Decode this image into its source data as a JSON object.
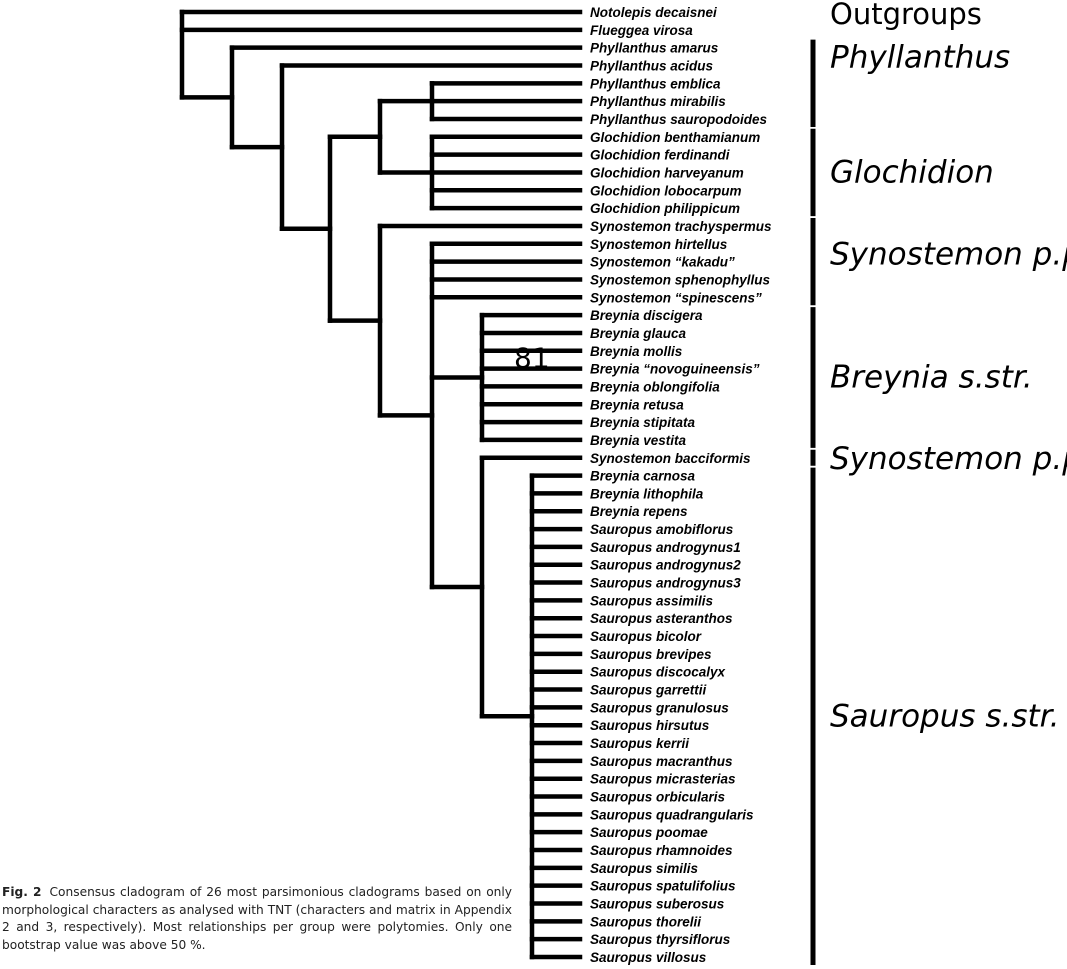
{
  "figure": {
    "caption_label": "Fig. 2",
    "caption_text": "Consensus cladogram of 26 most parsimonious cladograms based on only morphological characters as analysed with TNT (characters and matrix in Appendix 2 and 3, respectively). Most relationships per group were polytomies. Only one bootstrap value was above 50 %."
  },
  "taxa": [
    "Notolepis decaisnei",
    "Flueggea virosa",
    "Phyllanthus amarus",
    "Phyllanthus acidus",
    "Phyllanthus emblica",
    "Phyllanthus mirabilis",
    "Phyllanthus sauropodoides",
    "Glochidion benthamianum",
    "Glochidion ferdinandi",
    "Glochidion harveyanum",
    "Glochidion lobocarpum",
    "Glochidion philippicum",
    "Synostemon trachyspermus",
    "Synostemon hirtellus",
    "Synostemon “kakadu”",
    "Synostemon sphenophyllus",
    "Synostemon “spinescens”",
    "Breynia discigera",
    "Breynia glauca",
    "Breynia mollis",
    "Breynia “novoguineensis”",
    "Breynia oblongifolia",
    "Breynia retusa",
    "Breynia stipitata",
    "Breynia vestita",
    "Synostemon bacciformis",
    "Breynia carnosa",
    "Breynia lithophila",
    "Breynia repens",
    "Sauropus amobiflorus",
    "Sauropus androgynus1",
    "Sauropus androgynus2",
    "Sauropus androgynus3",
    "Sauropus assimilis",
    "Sauropus asteranthos",
    "Sauropus bicolor",
    "Sauropus brevipes",
    "Sauropus discocalyx",
    "Sauropus garrettii",
    "Sauropus granulosus",
    "Sauropus hirsutus",
    "Sauropus kerrii",
    "Sauropus macranthus",
    "Sauropus micrasterias",
    "Sauropus orbicularis",
    "Sauropus quadrangularis",
    "Sauropus poomae",
    "Sauropus rhamnoides",
    "Sauropus similis",
    "Sauropus spatulifolius",
    "Sauropus suberosus",
    "Sauropus thorelii",
    "Sauropus thyrsiflorus",
    "Sauropus villosus"
  ],
  "groups": [
    {
      "label": "Outgroups",
      "first_taxon": 0,
      "last_taxon": 1,
      "bar": false,
      "italic": false
    },
    {
      "label": "Phyllanthus",
      "first_taxon": 2,
      "last_taxon": 6,
      "bar": true,
      "italic": true
    },
    {
      "label": "Glochidion",
      "first_taxon": 7,
      "last_taxon": 11,
      "bar": true,
      "italic": true
    },
    {
      "label": "Synostemon p.p.",
      "first_taxon": 12,
      "last_taxon": 16,
      "bar": true,
      "italic": true
    },
    {
      "label": "Breynia s.str.",
      "first_taxon": 17,
      "last_taxon": 24,
      "bar": true,
      "italic": true
    },
    {
      "label": "Synostemon p.p.",
      "first_taxon": 25,
      "last_taxon": 25,
      "bar": true,
      "italic": true
    },
    {
      "label": "Sauropus s.str.",
      "first_taxon": 26,
      "last_taxon": 53,
      "bar": true,
      "italic": true
    }
  ],
  "tree": {
    "children": [
      {
        "taxon": 0
      },
      {
        "taxon": 1
      },
      {
        "children": [
          {
            "taxon": 2
          },
          {
            "children": [
              {
                "taxon": 3
              },
              {
                "children": [
                  {
                    "children": [
                      {
                        "children": [
                          {
                            "taxon": 4
                          },
                          {
                            "taxon": 5
                          },
                          {
                            "taxon": 6
                          }
                        ]
                      },
                      {
                        "children": [
                          {
                            "taxon": 7
                          },
                          {
                            "taxon": 8
                          },
                          {
                            "taxon": 9
                          },
                          {
                            "taxon": 10
                          },
                          {
                            "taxon": 11
                          }
                        ]
                      }
                    ]
                  },
                  {
                    "children": [
                      {
                        "taxon": 12
                      },
                      {
                        "children": [
                          {
                            "taxon": 13
                          },
                          {
                            "taxon": 14
                          },
                          {
                            "taxon": 15
                          },
                          {
                            "taxon": 16
                          },
                          {
                            "support": "81",
                            "children": [
                              {
                                "taxon": 17
                              },
                              {
                                "taxon": 18
                              },
                              {
                                "taxon": 19
                              },
                              {
                                "taxon": 20
                              },
                              {
                                "taxon": 21
                              },
                              {
                                "taxon": 22
                              },
                              {
                                "taxon": 23
                              },
                              {
                                "taxon": 24
                              }
                            ]
                          },
                          {
                            "children": [
                              {
                                "taxon": 25
                              },
                              {
                                "children": [
                                  {
                                    "taxon": 26
                                  },
                                  {
                                    "taxon": 27
                                  },
                                  {
                                    "taxon": 28
                                  },
                                  {
                                    "taxon": 29
                                  },
                                  {
                                    "taxon": 30
                                  },
                                  {
                                    "taxon": 31
                                  },
                                  {
                                    "taxon": 32
                                  },
                                  {
                                    "taxon": 33
                                  },
                                  {
                                    "taxon": 34
                                  },
                                  {
                                    "taxon": 35
                                  },
                                  {
                                    "taxon": 36
                                  },
                                  {
                                    "taxon": 37
                                  },
                                  {
                                    "taxon": 38
                                  },
                                  {
                                    "taxon": 39
                                  },
                                  {
                                    "taxon": 40
                                  },
                                  {
                                    "taxon": 41
                                  },
                                  {
                                    "taxon": 42
                                  },
                                  {
                                    "taxon": 43
                                  },
                                  {
                                    "taxon": 44
                                  },
                                  {
                                    "taxon": 45
                                  },
                                  {
                                    "taxon": 46
                                  },
                                  {
                                    "taxon": 47
                                  },
                                  {
                                    "taxon": 48
                                  },
                                  {
                                    "taxon": 49
                                  },
                                  {
                                    "taxon": 50
                                  },
                                  {
                                    "taxon": 51
                                  },
                                  {
                                    "taxon": 52
                                  },
                                  {
                                    "taxon": 53
                                  }
                                ]
                              }
                            ]
                          }
                        ]
                      }
                    ]
                  }
                ]
              }
            ]
          }
        ]
      }
    ]
  }
}
